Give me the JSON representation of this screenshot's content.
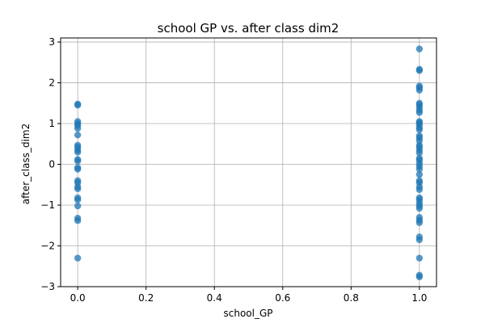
{
  "chart_data": {
    "type": "scatter",
    "title": "school GP vs. after class dim2",
    "xlabel": "school_GP",
    "ylabel": "after_class_dim2",
    "xlim": [
      -0.05,
      1.05
    ],
    "ylim": [
      -3.0,
      3.1
    ],
    "xticks": [
      0.0,
      0.2,
      0.4,
      0.6,
      0.8,
      1.0
    ],
    "xtick_labels": [
      "0.0",
      "0.2",
      "0.4",
      "0.6",
      "0.8",
      "1.0"
    ],
    "yticks": [
      -3,
      -2,
      -1,
      0,
      1,
      2,
      3
    ],
    "ytick_labels": [
      "−3",
      "−2",
      "−1",
      "0",
      "1",
      "2",
      "3"
    ],
    "grid": true,
    "marker_color": "#1f77b4",
    "points": [
      {
        "x": 0,
        "y": 1.48
      },
      {
        "x": 0,
        "y": 1.45
      },
      {
        "x": 0,
        "y": 1.05
      },
      {
        "x": 0,
        "y": 1.0
      },
      {
        "x": 0,
        "y": 0.95
      },
      {
        "x": 0,
        "y": 0.88
      },
      {
        "x": 0,
        "y": 0.72
      },
      {
        "x": 0,
        "y": 0.47
      },
      {
        "x": 0,
        "y": 0.42
      },
      {
        "x": 0,
        "y": 0.35
      },
      {
        "x": 0,
        "y": 0.3
      },
      {
        "x": 0,
        "y": 0.12
      },
      {
        "x": 0,
        "y": 0.08
      },
      {
        "x": 0,
        "y": -0.08
      },
      {
        "x": 0,
        "y": -0.12
      },
      {
        "x": 0,
        "y": -0.4
      },
      {
        "x": 0,
        "y": -0.45
      },
      {
        "x": 0,
        "y": -0.55
      },
      {
        "x": 0,
        "y": -0.6
      },
      {
        "x": 0,
        "y": -0.82
      },
      {
        "x": 0,
        "y": -0.87
      },
      {
        "x": 0,
        "y": -1.02
      },
      {
        "x": 0,
        "y": -1.32
      },
      {
        "x": 0,
        "y": -1.38
      },
      {
        "x": 0,
        "y": -2.3
      },
      {
        "x": 1,
        "y": 2.83
      },
      {
        "x": 1,
        "y": 2.33
      },
      {
        "x": 1,
        "y": 2.3
      },
      {
        "x": 1,
        "y": 1.92
      },
      {
        "x": 1,
        "y": 1.88
      },
      {
        "x": 1,
        "y": 1.82
      },
      {
        "x": 1,
        "y": 1.5
      },
      {
        "x": 1,
        "y": 1.46
      },
      {
        "x": 1,
        "y": 1.4
      },
      {
        "x": 1,
        "y": 1.33
      },
      {
        "x": 1,
        "y": 1.27
      },
      {
        "x": 1,
        "y": 1.05
      },
      {
        "x": 1,
        "y": 1.02
      },
      {
        "x": 1,
        "y": 0.97
      },
      {
        "x": 1,
        "y": 0.9
      },
      {
        "x": 1,
        "y": 0.85
      },
      {
        "x": 1,
        "y": 0.7
      },
      {
        "x": 1,
        "y": 0.65
      },
      {
        "x": 1,
        "y": 0.58
      },
      {
        "x": 1,
        "y": 0.47
      },
      {
        "x": 1,
        "y": 0.42
      },
      {
        "x": 1,
        "y": 0.35
      },
      {
        "x": 1,
        "y": 0.28
      },
      {
        "x": 1,
        "y": 0.15
      },
      {
        "x": 1,
        "y": 0.1
      },
      {
        "x": 1,
        "y": 0.02
      },
      {
        "x": 1,
        "y": -0.05
      },
      {
        "x": 1,
        "y": -0.12
      },
      {
        "x": 1,
        "y": -0.25
      },
      {
        "x": 1,
        "y": -0.4
      },
      {
        "x": 1,
        "y": -0.45
      },
      {
        "x": 1,
        "y": -0.55
      },
      {
        "x": 1,
        "y": -0.62
      },
      {
        "x": 1,
        "y": -0.82
      },
      {
        "x": 1,
        "y": -0.87
      },
      {
        "x": 1,
        "y": -0.95
      },
      {
        "x": 1,
        "y": -1.02
      },
      {
        "x": 1,
        "y": -1.08
      },
      {
        "x": 1,
        "y": -1.3
      },
      {
        "x": 1,
        "y": -1.37
      },
      {
        "x": 1,
        "y": -1.43
      },
      {
        "x": 1,
        "y": -1.78
      },
      {
        "x": 1,
        "y": -1.85
      },
      {
        "x": 1,
        "y": -2.3
      },
      {
        "x": 1,
        "y": -2.72
      },
      {
        "x": 1,
        "y": -2.76
      }
    ]
  }
}
